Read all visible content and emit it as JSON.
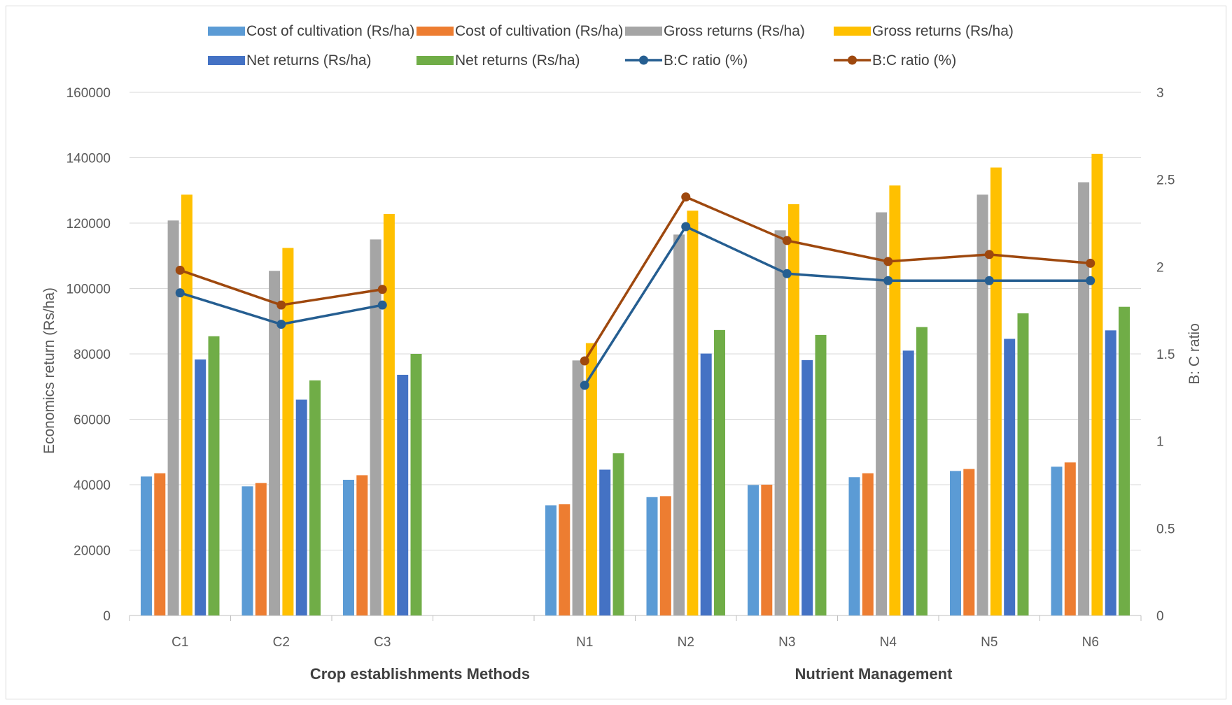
{
  "chart_data": {
    "type": "bar",
    "categories": [
      "C1",
      "C2",
      "C3",
      "",
      "N1",
      "N2",
      "N3",
      "N4",
      "N5",
      "N6"
    ],
    "group_labels": [
      "Crop establishments Methods",
      "Nutrient Management"
    ],
    "ylabel": "Economics return (Rs/ha)",
    "y2label": "B: C ratio",
    "ylim": [
      0,
      160000
    ],
    "y_ticks": [
      "0",
      "20000",
      "40000",
      "60000",
      "80000",
      "100000",
      "120000",
      "140000",
      "160000"
    ],
    "y2lim": [
      0,
      3
    ],
    "y2_ticks": [
      "0",
      "0.5",
      "1",
      "1.5",
      "2",
      "2.5",
      "3"
    ],
    "grid": true,
    "legend_position": "top",
    "series": [
      {
        "name": "Cost of cultivation (Rs/ha)",
        "kind": "bar",
        "color": "#5b9bd5",
        "values": [
          42500,
          39500,
          41500,
          null,
          33700,
          36200,
          39900,
          42300,
          44200,
          45500
        ]
      },
      {
        "name": "Cost of cultivation (Rs/ha)",
        "kind": "bar",
        "color": "#ed7d31",
        "values": [
          43500,
          40500,
          42900,
          null,
          34000,
          36500,
          40000,
          43500,
          44800,
          46800
        ]
      },
      {
        "name": "Gross returns (Rs/ha)",
        "kind": "bar",
        "color": "#a5a5a5",
        "values": [
          120800,
          105400,
          115000,
          null,
          78000,
          116500,
          117800,
          123300,
          128700,
          132500
        ]
      },
      {
        "name": "Gross returns (Rs/ha)",
        "kind": "bar",
        "color": "#ffc000",
        "values": [
          128700,
          112400,
          122800,
          null,
          83300,
          123800,
          125800,
          131500,
          137000,
          141200
        ]
      },
      {
        "name": "Net returns (Rs/ha)",
        "kind": "bar",
        "color": "#4472c4",
        "values": [
          78300,
          66000,
          73600,
          null,
          44600,
          80100,
          78100,
          81000,
          84600,
          87200
        ]
      },
      {
        "name": "Net returns (Rs/ha)",
        "kind": "bar",
        "color": "#70ad47",
        "values": [
          85400,
          71900,
          80000,
          null,
          49600,
          87300,
          85800,
          88200,
          92400,
          94400
        ]
      },
      {
        "name": "B:C ratio (%)",
        "kind": "line",
        "axis": "right",
        "color": "#255e91",
        "values": [
          1.85,
          1.67,
          1.78,
          null,
          1.32,
          2.23,
          1.96,
          1.92,
          1.92,
          1.92
        ]
      },
      {
        "name": "B:C ratio (%)",
        "kind": "line",
        "axis": "right",
        "color": "#9e480e",
        "values": [
          1.98,
          1.78,
          1.87,
          null,
          1.46,
          2.4,
          2.15,
          2.03,
          2.07,
          2.02
        ]
      }
    ]
  }
}
